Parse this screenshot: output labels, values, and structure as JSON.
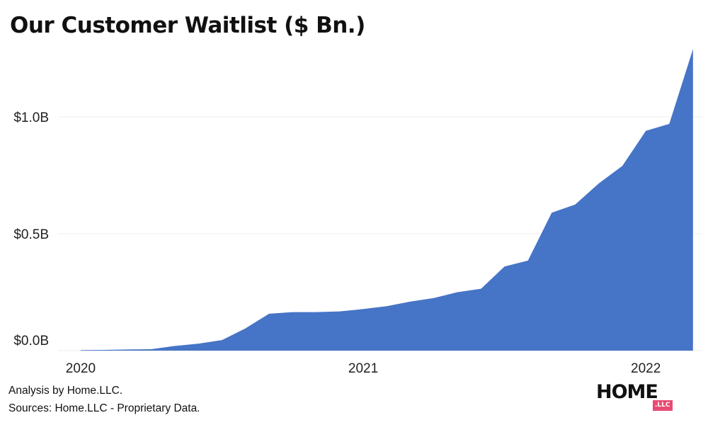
{
  "title": "Our Customer Waitlist ($ Bn.)",
  "footer": {
    "analysis": "Analysis by Home.LLC.",
    "sources": "Sources: Home.LLC - Proprietary Data."
  },
  "logo": {
    "main": "HOME",
    "badge": ".LLC"
  },
  "colors": {
    "area": "#4674c6",
    "grid": "#ececec",
    "badge": "#e84a73"
  },
  "chart_data": {
    "type": "area",
    "title": "Our Customer Waitlist ($ Bn.)",
    "xlabel": "",
    "ylabel": "",
    "x_ticks": [
      {
        "label": "2020",
        "value": 2020.0
      },
      {
        "label": "2021",
        "value": 2021.0
      },
      {
        "label": "2022",
        "value": 2022.0
      }
    ],
    "y_ticks": [
      {
        "label": "$0.0B",
        "value": 0.0
      },
      {
        "label": "$0.5B",
        "value": 0.5
      },
      {
        "label": "$1.0B",
        "value": 1.0
      }
    ],
    "xlim": [
      2019.92,
      2022.2
    ],
    "ylim": [
      0,
      1.3
    ],
    "grid": "horizontal",
    "x": [
      2020.0,
      2020.083,
      2020.167,
      2020.25,
      2020.333,
      2020.417,
      2020.5,
      2020.583,
      2020.667,
      2020.75,
      2020.833,
      2020.917,
      2021.0,
      2021.083,
      2021.167,
      2021.25,
      2021.333,
      2021.417,
      2021.5,
      2021.583,
      2021.667,
      2021.75,
      2021.833,
      2021.917,
      2022.0,
      2022.083,
      2022.167
    ],
    "values": [
      0.002,
      0.003,
      0.005,
      0.006,
      0.02,
      0.03,
      0.045,
      0.095,
      0.158,
      0.165,
      0.165,
      0.168,
      0.178,
      0.19,
      0.21,
      0.225,
      0.25,
      0.265,
      0.36,
      0.385,
      0.59,
      0.625,
      0.715,
      0.79,
      0.94,
      0.97,
      1.29
    ]
  }
}
